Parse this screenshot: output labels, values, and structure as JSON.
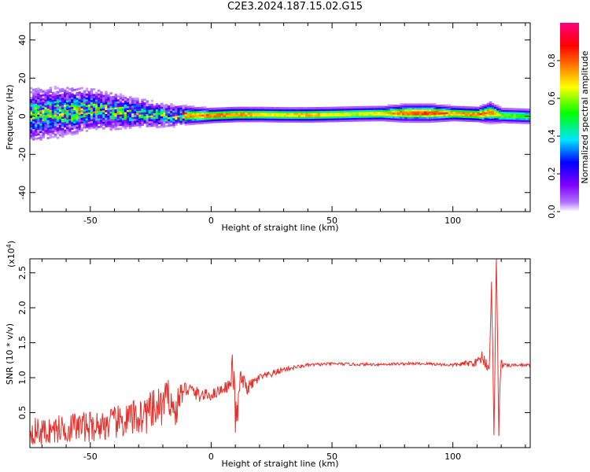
{
  "title": "C2E3.2024.187.15.02.G15",
  "chart_data": [
    {
      "type": "heatmap",
      "xlabel": "Height of straight line (km)",
      "ylabel": "Frequency (Hz)",
      "xlim": [
        -75,
        132
      ],
      "ylim": [
        -50,
        49
      ],
      "xticks": [
        -50,
        0,
        50,
        100
      ],
      "yticks": [
        -40,
        -20,
        0,
        20,
        40
      ],
      "xtick_labels": [
        "-50",
        "0",
        "50",
        "100"
      ],
      "ytick_labels": [
        "-40",
        "-20",
        "0",
        "20",
        "40"
      ],
      "colorbar": {
        "label": "Normalized spectral amplitude",
        "range": [
          0,
          1
        ],
        "ticks": [
          "0.0",
          "0.2",
          "0.4",
          "0.6",
          "0.8"
        ],
        "tick_values": [
          0,
          0.2,
          0.4,
          0.6,
          0.8
        ],
        "colormap": [
          "#8000ff",
          "#0000ff",
          "#00e5ff",
          "#00ff00",
          "#ffff00",
          "#ff6000",
          "#ff0000",
          "#ff0080"
        ]
      },
      "band_profile": {
        "x": [
          -75,
          -60,
          -50,
          -40,
          -30,
          -20,
          -10,
          0,
          10,
          20,
          30,
          40,
          50,
          60,
          70,
          80,
          90,
          100,
          110,
          115,
          120,
          132
        ],
        "center_hz": [
          0,
          2,
          3,
          2,
          1,
          0,
          0,
          0,
          0.5,
          0.5,
          0.3,
          0.3,
          0.5,
          0.8,
          1,
          1.3,
          1.3,
          1,
          0.5,
          1.5,
          0,
          -0.5
        ],
        "halfwidth_hz": [
          9,
          8,
          7,
          6,
          5,
          4,
          3,
          2.5,
          2.5,
          2.5,
          2.5,
          2.5,
          2.5,
          2.5,
          2.5,
          3,
          3,
          2.5,
          2.5,
          3.5,
          2.5,
          2.5
        ],
        "peak_amplitude": [
          0.5,
          0.55,
          0.55,
          0.5,
          0.5,
          0.5,
          0.75,
          0.8,
          0.8,
          0.7,
          0.7,
          0.75,
          0.7,
          0.65,
          0.7,
          0.8,
          0.85,
          0.75,
          0.8,
          0.8,
          0.6,
          0.55
        ]
      }
    },
    {
      "type": "line",
      "xlabel": "Height of straight line (km)",
      "ylabel": "SNR (10 * v/v)",
      "y_multiplier": "(x10",
      "y_multiplier_exp": "4",
      "y_multiplier_close": ")",
      "xlim": [
        -75,
        132
      ],
      "ylim": [
        0,
        2.7
      ],
      "xticks": [
        -50,
        0,
        50,
        100
      ],
      "yticks": [
        0.5,
        1.0,
        1.5,
        2.0,
        2.5
      ],
      "xtick_labels": [
        "-50",
        "0",
        "50",
        "100"
      ],
      "ytick_labels": [
        "0.5",
        "1.0",
        "1.5",
        "2.0",
        "2.5"
      ],
      "color": "#e8302a",
      "series": [
        {
          "x": [
            -75,
            -70,
            -65,
            -60,
            -55,
            -50,
            -45,
            -40,
            -35,
            -30,
            -25,
            -20,
            -17,
            -15,
            -13,
            -10,
            -5,
            0,
            5,
            8,
            9,
            10,
            11,
            12,
            15,
            20,
            25,
            30,
            35,
            40,
            50,
            60,
            70,
            80,
            90,
            100,
            105,
            110,
            112,
            115,
            116,
            117,
            118,
            119,
            120,
            122,
            125,
            132
          ],
          "y": [
            0.25,
            0.22,
            0.25,
            0.28,
            0.3,
            0.3,
            0.32,
            0.35,
            0.38,
            0.45,
            0.5,
            0.6,
            0.75,
            0.45,
            0.75,
            0.85,
            0.75,
            0.75,
            0.85,
            0.9,
            1.2,
            0.45,
            0.5,
            1.0,
            0.85,
            1.0,
            1.05,
            1.12,
            1.15,
            1.18,
            1.2,
            1.19,
            1.19,
            1.2,
            1.2,
            1.18,
            1.2,
            1.22,
            1.3,
            1.15,
            2.2,
            0.35,
            2.65,
            0.35,
            1.2,
            1.17,
            1.18,
            1.18
          ],
          "noise": [
            0.2,
            0.2,
            0.2,
            0.22,
            0.22,
            0.22,
            0.22,
            0.24,
            0.26,
            0.28,
            0.3,
            0.3,
            0.28,
            0.25,
            0.2,
            0.12,
            0.1,
            0.08,
            0.08,
            0.1,
            0.3,
            0.3,
            0.2,
            0.12,
            0.1,
            0.06,
            0.05,
            0.04,
            0.03,
            0.025,
            0.02,
            0.02,
            0.02,
            0.02,
            0.02,
            0.025,
            0.04,
            0.06,
            0.1,
            0.1,
            0.2,
            0.2,
            0.2,
            0.2,
            0.08,
            0.03,
            0.02,
            0.02
          ]
        }
      ]
    }
  ]
}
